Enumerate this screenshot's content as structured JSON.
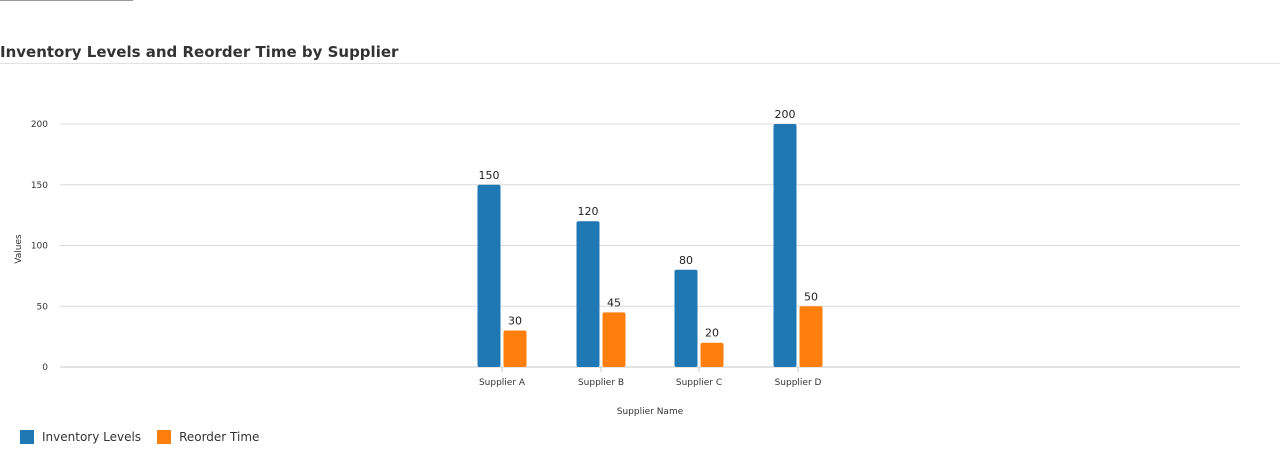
{
  "title": "Inventory Levels and Reorder Time by Supplier",
  "chart_data": {
    "type": "bar",
    "title": "Inventory Levels and Reorder Time by Supplier",
    "xlabel": "Supplier Name",
    "ylabel": "Values",
    "categories": [
      "Supplier A",
      "Supplier B",
      "Supplier C",
      "Supplier D"
    ],
    "series": [
      {
        "name": "Inventory Levels",
        "color": "#1f77b4",
        "values": [
          150,
          120,
          80,
          200
        ]
      },
      {
        "name": "Reorder Time",
        "color": "#ff7f0e",
        "values": [
          30,
          45,
          20,
          50
        ]
      }
    ],
    "yticks": [
      0,
      50,
      100,
      150,
      200
    ],
    "ylim": [
      0,
      200
    ],
    "grid": true,
    "legend_position": "bottom-left"
  }
}
